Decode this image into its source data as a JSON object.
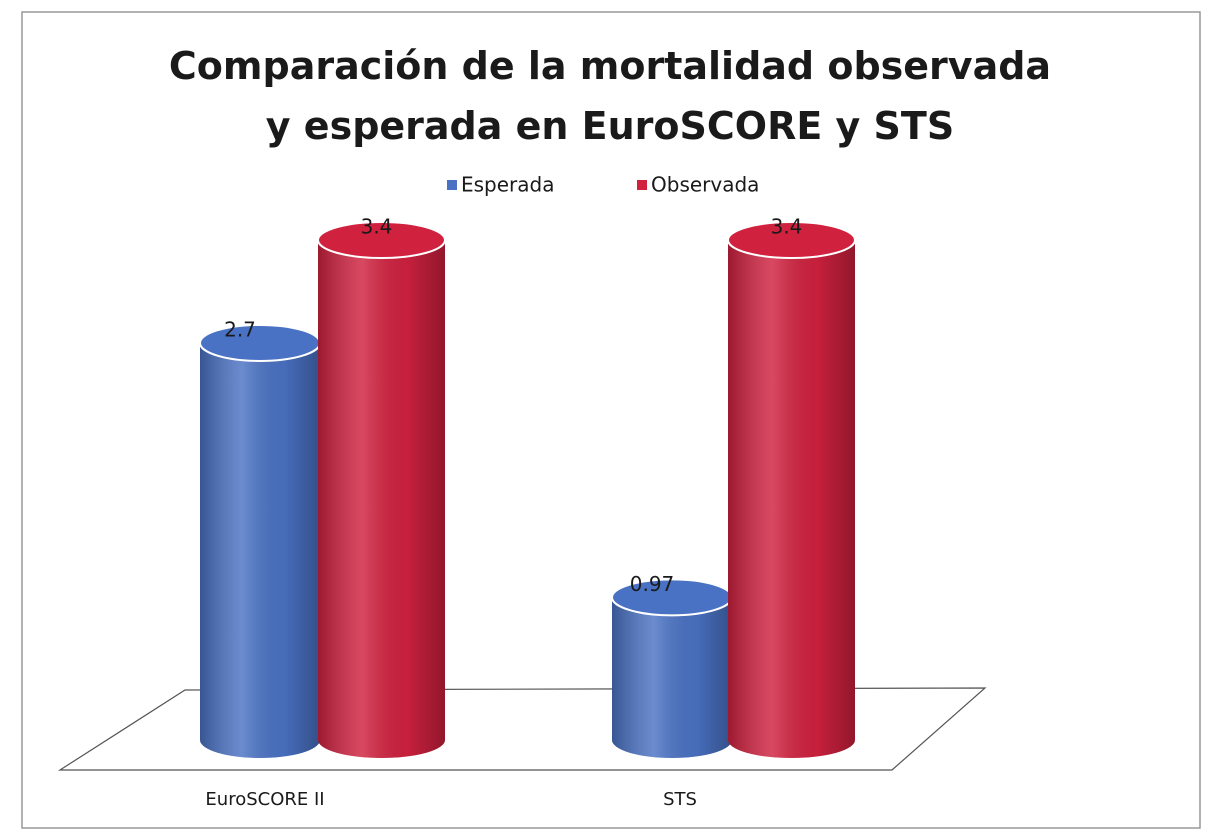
{
  "chart_data": {
    "type": "bar3d-cylinder",
    "title": "Comparación de la mortalidad observada y esperada en EuroSCORE y STS",
    "categories": [
      "EuroSCORE II",
      "STS"
    ],
    "series": [
      {
        "name": "Esperada",
        "color": "#4a72c4",
        "values": [
          2.7,
          0.97
        ]
      },
      {
        "name": "Observada",
        "color": "#d0213f",
        "values": [
          3.4,
          3.4
        ]
      }
    ],
    "legend": "top"
  }
}
